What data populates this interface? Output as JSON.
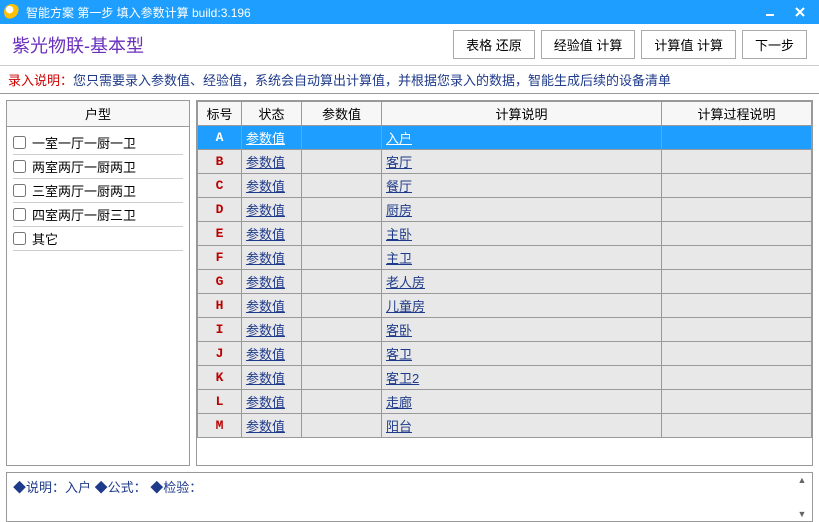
{
  "titlebar": {
    "title": "智能方案 第一步 填入参数计算   build:3.196"
  },
  "header": {
    "app_title": "紫光物联-基本型",
    "buttons": {
      "restore": "表格 还原",
      "exp_calc": "经验值 计算",
      "calc_calc": "计算值 计算",
      "next": "下一步"
    }
  },
  "instruction": {
    "prefix": "录入说明：",
    "text": "您只需要录入参数值、经验值，系统会自动算出计算值，并根据您录入的数据，智能生成后续的设备清单"
  },
  "left": {
    "header": "户型",
    "items": [
      "一室一厅一厨一卫",
      "两室两厅一厨两卫",
      "三室两厅一厨两卫",
      "四室两厅一厨三卫",
      "其它"
    ]
  },
  "table": {
    "headers": {
      "mark": "标号",
      "status": "状态",
      "param": "参数值",
      "desc": "计算说明",
      "proc": "计算过程说明"
    },
    "rows": [
      {
        "mark": "A",
        "status": "参数值",
        "desc": "入户",
        "selected": true
      },
      {
        "mark": "B",
        "status": "参数值",
        "desc": "客厅"
      },
      {
        "mark": "C",
        "status": "参数值",
        "desc": "餐厅"
      },
      {
        "mark": "D",
        "status": "参数值",
        "desc": "厨房"
      },
      {
        "mark": "E",
        "status": "参数值",
        "desc": "主卧"
      },
      {
        "mark": "F",
        "status": "参数值",
        "desc": "主卫"
      },
      {
        "mark": "G",
        "status": "参数值",
        "desc": "老人房"
      },
      {
        "mark": "H",
        "status": "参数值",
        "desc": "儿童房"
      },
      {
        "mark": "I",
        "status": "参数值",
        "desc": "客卧"
      },
      {
        "mark": "J",
        "status": "参数值",
        "desc": "客卫"
      },
      {
        "mark": "K",
        "status": "参数值",
        "desc": "客卫2"
      },
      {
        "mark": "L",
        "status": "参数值",
        "desc": "走廊"
      },
      {
        "mark": "M",
        "status": "参数值",
        "desc": "阳台"
      }
    ]
  },
  "footer": {
    "text": "◆说明：入户   ◆公式：   ◆检验："
  }
}
